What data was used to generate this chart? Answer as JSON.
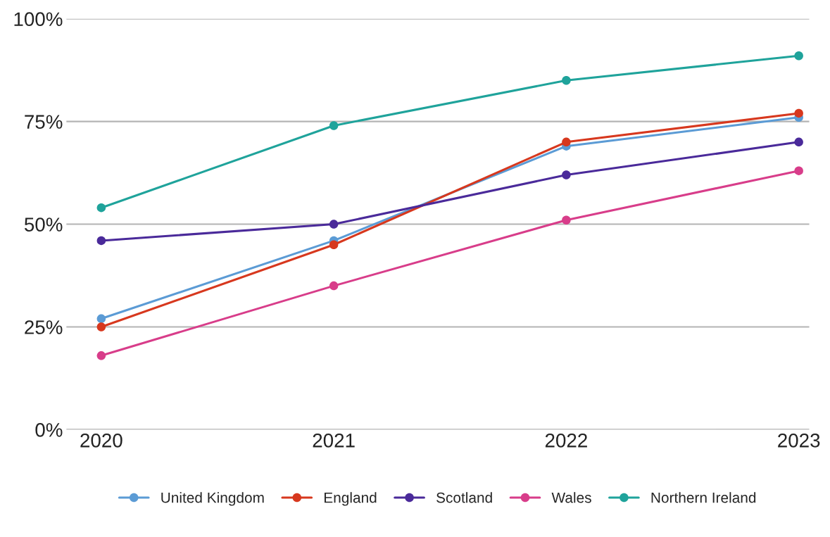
{
  "chart_data": {
    "type": "line",
    "categories": [
      "2020",
      "2021",
      "2022",
      "2023"
    ],
    "series": [
      {
        "name": "United Kingdom",
        "color": "#5b9bd5",
        "values": [
          27,
          46,
          69,
          76
        ]
      },
      {
        "name": "England",
        "color": "#d7381e",
        "values": [
          25,
          45,
          70,
          77
        ]
      },
      {
        "name": "Scotland",
        "color": "#4a2a9a",
        "values": [
          46,
          50,
          62,
          70
        ]
      },
      {
        "name": "Wales",
        "color": "#d83d8a",
        "values": [
          18,
          35,
          51,
          63
        ]
      },
      {
        "name": "Northern Ireland",
        "color": "#1fa39b",
        "values": [
          54,
          74,
          85,
          91
        ]
      }
    ],
    "ylim": [
      0,
      100
    ],
    "yticks": [
      {
        "value": 0,
        "label": "0%"
      },
      {
        "value": 25,
        "label": "25%"
      },
      {
        "value": 50,
        "label": "50%"
      },
      {
        "value": 75,
        "label": "75%"
      },
      {
        "value": 100,
        "label": "100%"
      }
    ],
    "grid": "y",
    "legend": "bottom",
    "marker": "circle",
    "line_style": "solid"
  }
}
